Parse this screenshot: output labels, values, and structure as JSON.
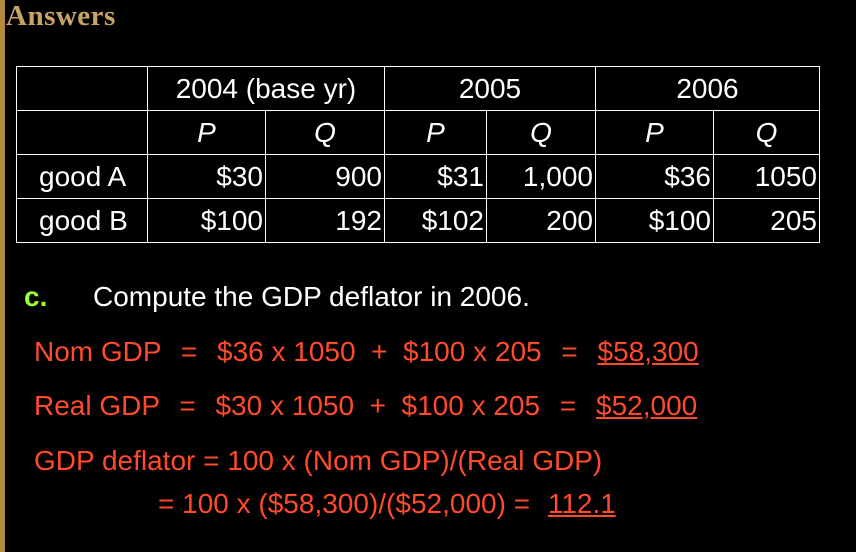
{
  "slide": {
    "title": "Answers"
  },
  "table": {
    "years": [
      "2004 (base yr)",
      "2005",
      "2006"
    ],
    "sub_headers": [
      "P",
      "Q",
      "P",
      "Q",
      "P",
      "Q"
    ],
    "rows": [
      {
        "label": "good A",
        "values": [
          "$30",
          "900",
          "$31",
          "1,000",
          "$36",
          "1050"
        ]
      },
      {
        "label": "good B",
        "values": [
          "$100",
          "192",
          "$102",
          "200",
          "$100",
          "205"
        ]
      }
    ]
  },
  "question": {
    "letter": "c.",
    "text": "Compute the GDP deflator in 2006."
  },
  "answers": {
    "nom_gdp": {
      "label": "Nom GDP",
      "eq1": "=",
      "expr": "$36 x 1050  +  $100 x 205",
      "eq2": "=",
      "result": "$58,300"
    },
    "real_gdp": {
      "label": "Real GDP",
      "eq1": "=",
      "expr": "$30 x 1050  +  $100 x 205",
      "eq2": "=",
      "result": "$52,000"
    },
    "deflator_formula": "GDP deflator = 100 x (Nom GDP)/(Real GDP)",
    "deflator_calc": "= 100 x ($58,300)/($52,000) = ",
    "deflator_result": "112.1"
  },
  "colors": {
    "background": "#000000",
    "title": "#c8a366",
    "answer_text": "#ff4a2c",
    "question_letter": "#99ff33",
    "accent_bar": "#b58a3c"
  }
}
